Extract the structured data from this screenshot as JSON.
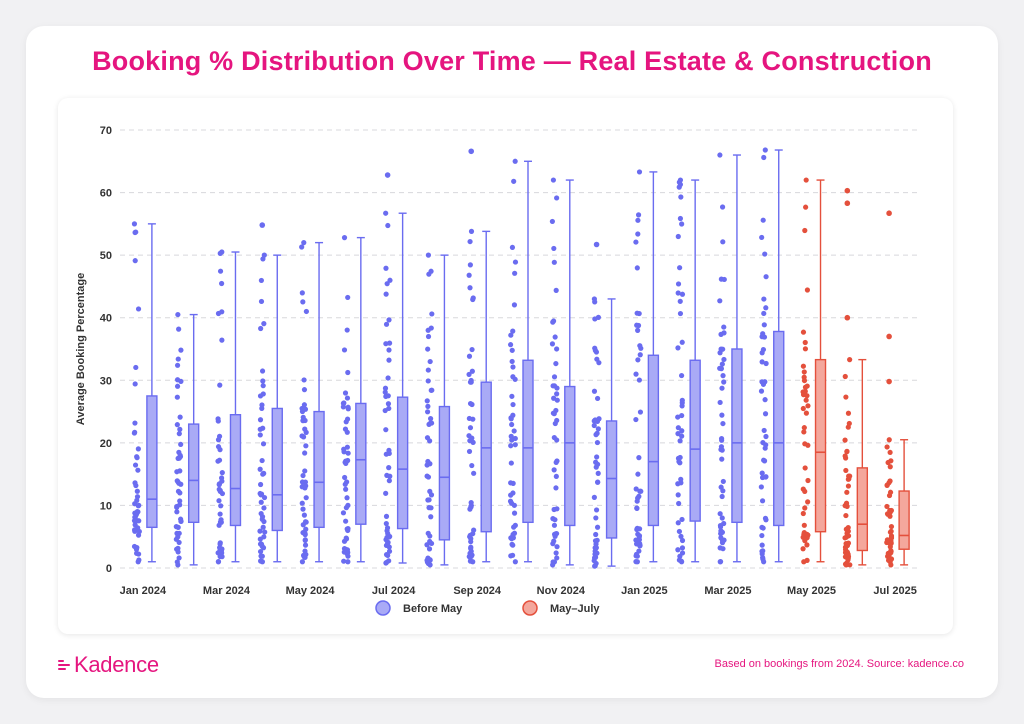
{
  "title": "Booking % Distribution Over Time — Real Estate & Construction",
  "footnote": "Based on bookings from 2024. Source: kadence.co",
  "brand": {
    "name": "Kadence",
    "color": "#e5157f"
  },
  "colors": {
    "before": "#6a6cf0",
    "before_fill": "#a9aaf6",
    "after": "#e4503c",
    "after_fill": "#f4a79c",
    "grid": "#d8d8dc"
  },
  "chart_data": {
    "type": "box",
    "ylabel": "Average Booking Percentage",
    "ylim": [
      0,
      70
    ],
    "yticks": [
      0,
      10,
      20,
      30,
      40,
      50,
      60,
      70
    ],
    "grid": true,
    "legend_position": "bottom-center",
    "x_tick_labels": [
      "Jan 2024",
      "Mar 2024",
      "May 2024",
      "Jul 2024",
      "Sep 2024",
      "Nov 2024",
      "Jan 2025",
      "Mar 2025",
      "May 2025",
      "Jul 2025"
    ],
    "series": [
      {
        "name": "Before May",
        "group": "before"
      },
      {
        "name": "May–July",
        "group": "after"
      }
    ],
    "boxes": [
      {
        "month": "Jan 2024",
        "group": "before",
        "min": 1,
        "q1": 6.5,
        "median": 11,
        "q3": 27.5,
        "max": 55
      },
      {
        "month": "Feb 2024",
        "group": "before",
        "min": 0.5,
        "q1": 7.3,
        "median": 14,
        "q3": 23,
        "max": 40.5
      },
      {
        "month": "Mar 2024",
        "group": "before",
        "min": 1,
        "q1": 6.8,
        "median": 12.7,
        "q3": 24.5,
        "max": 50.5
      },
      {
        "month": "Apr 2024",
        "group": "before",
        "min": 1,
        "q1": 6,
        "median": 11.7,
        "q3": 25.5,
        "max": 50
      },
      {
        "month": "May 2024",
        "group": "before",
        "min": 1,
        "q1": 6.5,
        "median": 13.7,
        "q3": 25,
        "max": 52
      },
      {
        "month": "Jun 2024",
        "group": "before",
        "min": 1,
        "q1": 7,
        "median": 17.3,
        "q3": 26.3,
        "max": 52.8
      },
      {
        "month": "Jul 2024",
        "group": "before",
        "min": 0.8,
        "q1": 6.3,
        "median": 15.8,
        "q3": 27.3,
        "max": 56.7
      },
      {
        "month": "Aug 2024",
        "group": "before",
        "min": 0.5,
        "q1": 4.5,
        "median": 14.5,
        "q3": 25.8,
        "max": 50
      },
      {
        "month": "Sep 2024",
        "group": "before",
        "min": 1,
        "q1": 5.8,
        "median": 19.2,
        "q3": 29.7,
        "max": 53.8
      },
      {
        "month": "Oct 2024",
        "group": "before",
        "min": 1,
        "q1": 7.3,
        "median": 19.2,
        "q3": 33.2,
        "max": 65
      },
      {
        "month": "Nov 2024",
        "group": "before",
        "min": 0.5,
        "q1": 6.8,
        "median": 20,
        "q3": 29,
        "max": 62
      },
      {
        "month": "Dec 2024",
        "group": "before",
        "min": 0.3,
        "q1": 4.8,
        "median": 14.3,
        "q3": 23.5,
        "max": 43
      },
      {
        "month": "Jan 2025",
        "group": "before",
        "min": 1,
        "q1": 6.8,
        "median": 17,
        "q3": 34,
        "max": 63.3
      },
      {
        "month": "Feb 2025",
        "group": "before",
        "min": 1,
        "q1": 7.5,
        "median": 19,
        "q3": 33.2,
        "max": 62
      },
      {
        "month": "Mar 2025",
        "group": "before",
        "min": 1,
        "q1": 7.3,
        "median": 20,
        "q3": 35,
        "max": 66
      },
      {
        "month": "Apr 2025",
        "group": "before",
        "min": 1,
        "q1": 6.8,
        "median": 20,
        "q3": 37.8,
        "max": 66.8
      },
      {
        "month": "May 2025",
        "group": "after",
        "min": 1,
        "q1": 5.8,
        "median": 18.5,
        "q3": 33.3,
        "max": 62
      },
      {
        "month": "Jun 2025",
        "group": "after",
        "min": 0.5,
        "q1": 2.8,
        "median": 7,
        "q3": 16,
        "max": 33.3
      },
      {
        "month": "Jul 2025",
        "group": "after",
        "min": 0.5,
        "q1": 3,
        "median": 5.2,
        "q3": 12.3,
        "max": 20.5
      }
    ],
    "outliers": [
      {
        "month": "Jan 2024",
        "values": []
      },
      {
        "month": "Feb 2024",
        "values": []
      },
      {
        "month": "Mar 2024",
        "values": []
      },
      {
        "month": "Apr 2024",
        "values": [
          54.8
        ]
      },
      {
        "month": "May 2024",
        "values": []
      },
      {
        "month": "Jun 2024",
        "values": []
      },
      {
        "month": "Jul 2024",
        "values": [
          62.8
        ]
      },
      {
        "month": "Aug 2024",
        "values": []
      },
      {
        "month": "Sep 2024",
        "values": [
          66.6
        ]
      },
      {
        "month": "Oct 2024",
        "values": []
      },
      {
        "month": "Nov 2024",
        "values": []
      },
      {
        "month": "Dec 2024",
        "values": [
          51.7
        ]
      },
      {
        "month": "Jan 2025",
        "values": []
      },
      {
        "month": "Feb 2025",
        "values": []
      },
      {
        "month": "Mar 2025",
        "values": []
      },
      {
        "month": "Apr 2025",
        "values": []
      },
      {
        "month": "May 2025",
        "values": []
      },
      {
        "month": "Jun 2025",
        "values": [
          40,
          58.3,
          60.3
        ]
      },
      {
        "month": "Jul 2025",
        "values": [
          29.8,
          37,
          56.7
        ]
      }
    ]
  }
}
